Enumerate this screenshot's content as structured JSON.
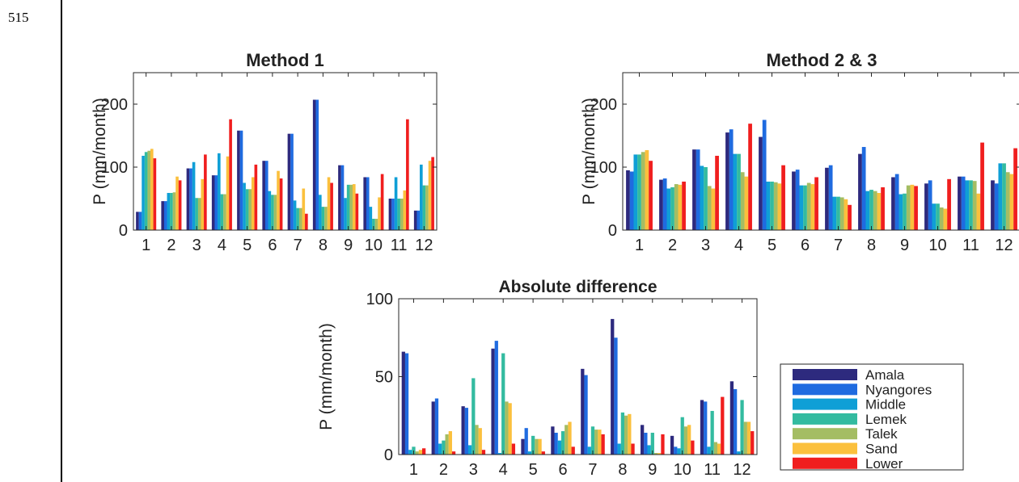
{
  "page": {
    "line_number": "515"
  },
  "colors": {
    "Amala": "#2d2a7e",
    "Nyangores": "#1f6be0",
    "Middle": "#0f9fd6",
    "Lemek": "#33bba0",
    "Talek": "#a4bd63",
    "Sand": "#fbc03d",
    "Lower": "#f01e1e"
  },
  "chart_data": [
    {
      "type": "bar",
      "title": "Method 1",
      "ylabel": "P (mm/month)",
      "xlabel": "",
      "ylim": [
        0,
        250
      ],
      "yticks": [
        0,
        100,
        200
      ],
      "categories": [
        "1",
        "2",
        "3",
        "4",
        "5",
        "6",
        "7",
        "8",
        "9",
        "10",
        "11",
        "12"
      ],
      "series": [
        {
          "name": "Amala",
          "values": [
            29,
            46,
            98,
            87,
            158,
            110,
            153,
            207,
            103,
            84,
            50,
            31
          ]
        },
        {
          "name": "Nyangores",
          "values": [
            29,
            46,
            98,
            87,
            158,
            110,
            153,
            207,
            103,
            84,
            50,
            31
          ]
        },
        {
          "name": "Middle",
          "values": [
            118,
            59,
            108,
            122,
            75,
            62,
            47,
            56,
            51,
            37,
            84,
            104
          ]
        },
        {
          "name": "Lemek",
          "values": [
            124,
            59,
            51,
            57,
            65,
            56,
            35,
            37,
            72,
            18,
            50,
            71
          ]
        },
        {
          "name": "Talek",
          "values": [
            126,
            60,
            51,
            57,
            65,
            56,
            35,
            37,
            72,
            18,
            50,
            71
          ]
        },
        {
          "name": "Sand",
          "values": [
            129,
            85,
            81,
            117,
            84,
            94,
            66,
            84,
            73,
            52,
            63,
            110
          ]
        },
        {
          "name": "Lower",
          "values": [
            114,
            79,
            120,
            176,
            104,
            82,
            26,
            75,
            58,
            89,
            176,
            116
          ]
        }
      ]
    },
    {
      "type": "bar",
      "title": "Method 2 & 3",
      "ylabel": "P (mm/month)",
      "xlabel": "",
      "ylim": [
        0,
        250
      ],
      "yticks": [
        0,
        100,
        200
      ],
      "categories": [
        "1",
        "2",
        "3",
        "4",
        "5",
        "6",
        "7",
        "8",
        "9",
        "10",
        "11",
        "12"
      ],
      "series": [
        {
          "name": "Amala",
          "values": [
            95,
            80,
            128,
            155,
            148,
            93,
            99,
            121,
            84,
            74,
            85,
            79
          ]
        },
        {
          "name": "Nyangores",
          "values": [
            93,
            82,
            128,
            160,
            175,
            96,
            103,
            132,
            89,
            79,
            85,
            74
          ]
        },
        {
          "name": "Middle",
          "values": [
            120,
            66,
            102,
            121,
            77,
            71,
            53,
            62,
            57,
            42,
            79,
            106
          ]
        },
        {
          "name": "Lemek",
          "values": [
            120,
            68,
            100,
            121,
            77,
            71,
            53,
            64,
            58,
            42,
            79,
            106
          ]
        },
        {
          "name": "Talek",
          "values": [
            124,
            73,
            70,
            92,
            76,
            75,
            52,
            62,
            71,
            36,
            78,
            92
          ]
        },
        {
          "name": "Sand",
          "values": [
            127,
            72,
            66,
            85,
            74,
            73,
            49,
            59,
            72,
            34,
            58,
            89
          ]
        },
        {
          "name": "Lower",
          "values": [
            110,
            77,
            118,
            169,
            103,
            84,
            40,
            68,
            70,
            81,
            139,
            130
          ]
        }
      ]
    },
    {
      "type": "bar",
      "title": "Absolute difference",
      "ylabel": "P (mm/month)",
      "xlabel": "",
      "ylim": [
        0,
        100
      ],
      "yticks": [
        0,
        50,
        100
      ],
      "categories": [
        "1",
        "2",
        "3",
        "4",
        "5",
        "6",
        "7",
        "8",
        "9",
        "10",
        "11",
        "12"
      ],
      "series": [
        {
          "name": "Amala",
          "values": [
            66,
            34,
            31,
            68,
            10,
            18,
            55,
            87,
            19,
            12,
            35,
            47
          ]
        },
        {
          "name": "Nyangores",
          "values": [
            65,
            36,
            30,
            73,
            17,
            14,
            51,
            75,
            14,
            5,
            34,
            42
          ]
        },
        {
          "name": "Middle",
          "values": [
            3,
            7,
            6,
            1,
            2,
            9,
            5,
            7,
            6,
            4,
            5,
            2
          ]
        },
        {
          "name": "Lemek",
          "values": [
            5,
            9,
            49,
            65,
            12,
            15,
            18,
            27,
            14,
            24,
            28,
            35
          ]
        },
        {
          "name": "Talek",
          "values": [
            2,
            13,
            19,
            34,
            10,
            19,
            16,
            25,
            1,
            18,
            8,
            21
          ]
        },
        {
          "name": "Sand",
          "values": [
            3,
            15,
            17,
            33,
            10,
            21,
            16,
            26,
            1,
            19,
            7,
            21
          ]
        },
        {
          "name": "Lower",
          "values": [
            4,
            2,
            3,
            7,
            2,
            5,
            13,
            7,
            13,
            9,
            37,
            15
          ]
        }
      ]
    }
  ],
  "legend": [
    "Amala",
    "Nyangores",
    "Middle",
    "Lemek",
    "Talek",
    "Sand",
    "Lower"
  ]
}
